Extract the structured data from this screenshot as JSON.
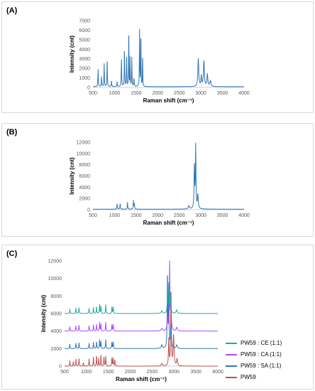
{
  "chart_data": [
    {
      "panel": "(A)",
      "type": "line",
      "xlabel": "Raman shift (cm⁻¹)",
      "ylabel": "Intensity (cnt)",
      "xlim": [
        500,
        4000
      ],
      "ylim": [
        0,
        7000
      ],
      "xticks": [
        "500",
        "1000",
        "1500",
        "2000",
        "2500",
        "3000",
        "3500",
        "4000"
      ],
      "yticks": [
        "0",
        "1000",
        "2000",
        "3000",
        "4000",
        "5000",
        "6000",
        "7000"
      ],
      "grid": false,
      "series": [
        {
          "color": "#2e75b6",
          "baseline": 80,
          "peaks": [
            [
              620,
              1800,
              6
            ],
            [
              700,
              1000,
              6
            ],
            [
              760,
              2400,
              5
            ],
            [
              830,
              3000,
              5
            ],
            [
              930,
              600,
              6
            ],
            [
              1060,
              500,
              6
            ],
            [
              1160,
              2800,
              6
            ],
            [
              1230,
              4200,
              5
            ],
            [
              1280,
              3000,
              5
            ],
            [
              1330,
              6500,
              4
            ],
            [
              1360,
              3000,
              4
            ],
            [
              1400,
              3000,
              5
            ],
            [
              1450,
              900,
              6
            ],
            [
              1580,
              5900,
              5
            ],
            [
              1610,
              6000,
              4
            ],
            [
              1650,
              3600,
              4
            ],
            [
              2940,
              2900,
              12
            ],
            [
              3010,
              1100,
              10
            ],
            [
              3070,
              2700,
              12
            ],
            [
              3150,
              1300,
              12
            ],
            [
              3220,
              600,
              15
            ]
          ]
        }
      ]
    },
    {
      "panel": "(B)",
      "type": "line",
      "xlabel": "Raman shift (cm⁻¹)",
      "ylabel": "Intensity (cnt)",
      "xlim": [
        500,
        4000
      ],
      "ylim": [
        0,
        12000
      ],
      "xticks": [
        "500",
        "1000",
        "1500",
        "2000",
        "2500",
        "3000",
        "3500",
        "4000"
      ],
      "yticks": [
        "0",
        "2000",
        "4000",
        "6000",
        "8000",
        "10000",
        "12000"
      ],
      "grid": false,
      "series": [
        {
          "color": "#2e75b6",
          "baseline": 100,
          "peaks": [
            [
              1060,
              900,
              6
            ],
            [
              1130,
              1000,
              6
            ],
            [
              1300,
              1200,
              6
            ],
            [
              1440,
              1500,
              6
            ],
            [
              1460,
              900,
              6
            ],
            [
              2720,
              600,
              15
            ],
            [
              2850,
              7800,
              9
            ],
            [
              2880,
              11000,
              7
            ],
            [
              2930,
              2500,
              12
            ]
          ]
        }
      ]
    },
    {
      "panel": "(C)",
      "type": "line",
      "xlabel": "Raman shift (cm⁻¹)",
      "ylabel": "Intensity (cnt)",
      "xlim": [
        500,
        4000
      ],
      "ylim": [
        0,
        12000
      ],
      "xticks": [
        "500",
        "1000",
        "1500",
        "2000",
        "2500",
        "3000",
        "3500",
        "4000"
      ],
      "yticks": [
        "0",
        "2000",
        "4000",
        "6000",
        "8000",
        "10000",
        "12000"
      ],
      "grid": false,
      "legend": "right",
      "series": [
        {
          "name": "PW59 : CE (1:1)",
          "color": "#26a69a",
          "baseline": 6000,
          "peaks": [
            [
              620,
              500,
              6
            ],
            [
              760,
              600,
              6
            ],
            [
              830,
              700,
              6
            ],
            [
              1060,
              600,
              6
            ],
            [
              1160,
              700,
              6
            ],
            [
              1230,
              800,
              6
            ],
            [
              1300,
              1000,
              6
            ],
            [
              1330,
              900,
              5
            ],
            [
              1440,
              1000,
              6
            ],
            [
              1580,
              700,
              6
            ],
            [
              1610,
              800,
              6
            ],
            [
              2720,
              300,
              15
            ],
            [
              2850,
              1500,
              10
            ],
            [
              2880,
              3300,
              8
            ],
            [
              2920,
              2200,
              8
            ],
            [
              3060,
              400,
              15
            ]
          ]
        },
        {
          "name": "PW59 : CA (1:1)",
          "color": "#a64dff",
          "baseline": 4000,
          "peaks": [
            [
              620,
              500,
              6
            ],
            [
              760,
              600,
              6
            ],
            [
              830,
              700,
              6
            ],
            [
              1060,
              600,
              6
            ],
            [
              1160,
              700,
              6
            ],
            [
              1230,
              800,
              6
            ],
            [
              1300,
              1000,
              6
            ],
            [
              1330,
              900,
              5
            ],
            [
              1440,
              1000,
              6
            ],
            [
              1580,
              700,
              6
            ],
            [
              1610,
              800,
              6
            ],
            [
              2720,
              300,
              15
            ],
            [
              2850,
              1800,
              10
            ],
            [
              2900,
              8000,
              7
            ],
            [
              2930,
              4200,
              8
            ],
            [
              3060,
              400,
              15
            ]
          ]
        },
        {
          "name": "PW59 : SA (1:1)",
          "color": "#2e75b6",
          "baseline": 2000,
          "peaks": [
            [
              620,
              500,
              6
            ],
            [
              760,
              600,
              6
            ],
            [
              830,
              700,
              6
            ],
            [
              1060,
              600,
              6
            ],
            [
              1160,
              700,
              6
            ],
            [
              1230,
              800,
              6
            ],
            [
              1300,
              1000,
              6
            ],
            [
              1330,
              900,
              5
            ],
            [
              1440,
              1000,
              6
            ],
            [
              1580,
              700,
              6
            ],
            [
              1610,
              800,
              6
            ],
            [
              2720,
              400,
              15
            ],
            [
              2850,
              8500,
              7
            ],
            [
              2880,
              5500,
              8
            ],
            [
              2930,
              2500,
              10
            ],
            [
              3060,
              400,
              15
            ]
          ]
        },
        {
          "name": "PW59",
          "color": "#c0504d",
          "baseline": 0,
          "peaks": [
            [
              620,
              600,
              6
            ],
            [
              700,
              500,
              6
            ],
            [
              760,
              800,
              6
            ],
            [
              830,
              900,
              6
            ],
            [
              930,
              400,
              6
            ],
            [
              1060,
              800,
              6
            ],
            [
              1160,
              1000,
              6
            ],
            [
              1230,
              1200,
              6
            ],
            [
              1280,
              900,
              5
            ],
            [
              1330,
              1400,
              5
            ],
            [
              1400,
              1000,
              6
            ],
            [
              1440,
              1100,
              6
            ],
            [
              1580,
              900,
              6
            ],
            [
              1610,
              1000,
              6
            ],
            [
              1650,
              700,
              6
            ],
            [
              2720,
              300,
              15
            ],
            [
              2880,
              3000,
              8
            ],
            [
              2930,
              8500,
              8
            ],
            [
              2990,
              3500,
              12
            ],
            [
              3070,
              800,
              12
            ]
          ]
        }
      ]
    }
  ]
}
